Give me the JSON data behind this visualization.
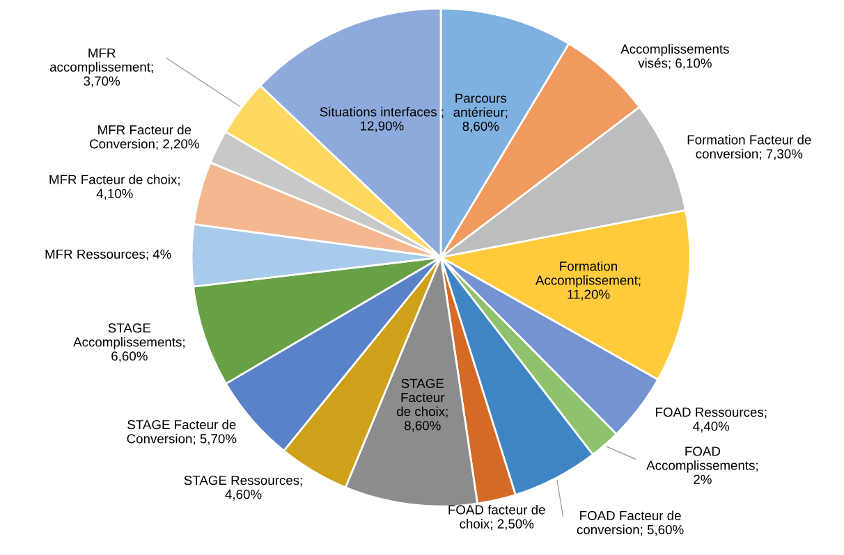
{
  "chart_data": {
    "type": "pie",
    "categories": [
      "Parcours\nantérieur;\n8,60%",
      "Accomplissements\nvisés; 6,10%",
      "Formation Facteur de\nconversion; 7,30%",
      "Formation\nAccomplissement;\n11,20%",
      "FOAD Ressources;\n4,40%",
      "FOAD\nAccomplissements;\n2%",
      "FOAD Facteur de\nconversion; 5,60%",
      "FOAD facteur de\nchoix; 2,50%",
      "STAGE\nFacteur\nde choix;\n8,60%",
      "STAGE Ressources;\n4,60%",
      "STAGE Facteur de\nConversion; 5,70%",
      "STAGE\nAccomplissements;\n6,60%",
      "MFR Ressources; 4%",
      "MFR Facteur de choix;\n4,10%",
      "MFR Facteur de\nConversion; 2,20%",
      "MFR\naccomplissement;\n3,70%",
      "Situations interfaces ;\n12,90%"
    ],
    "values": [
      8.6,
      6.1,
      7.3,
      11.2,
      4.4,
      2,
      5.6,
      2.5,
      8.6,
      4.6,
      5.7,
      6.6,
      4,
      4.1,
      2.2,
      3.7,
      12.9
    ],
    "colors": [
      "#7eb1e0",
      "#f09a60",
      "#bdbdbd",
      "#ffcb3d",
      "#7393d3",
      "#8fc26d",
      "#3f85c4",
      "#d46a25",
      "#8c8c8c",
      "#cfa11a",
      "#5a82c9",
      "#68a045",
      "#a9cbeb",
      "#f4b890",
      "#c8c8c8",
      "#ffd85f",
      "#8eaadc"
    ]
  }
}
